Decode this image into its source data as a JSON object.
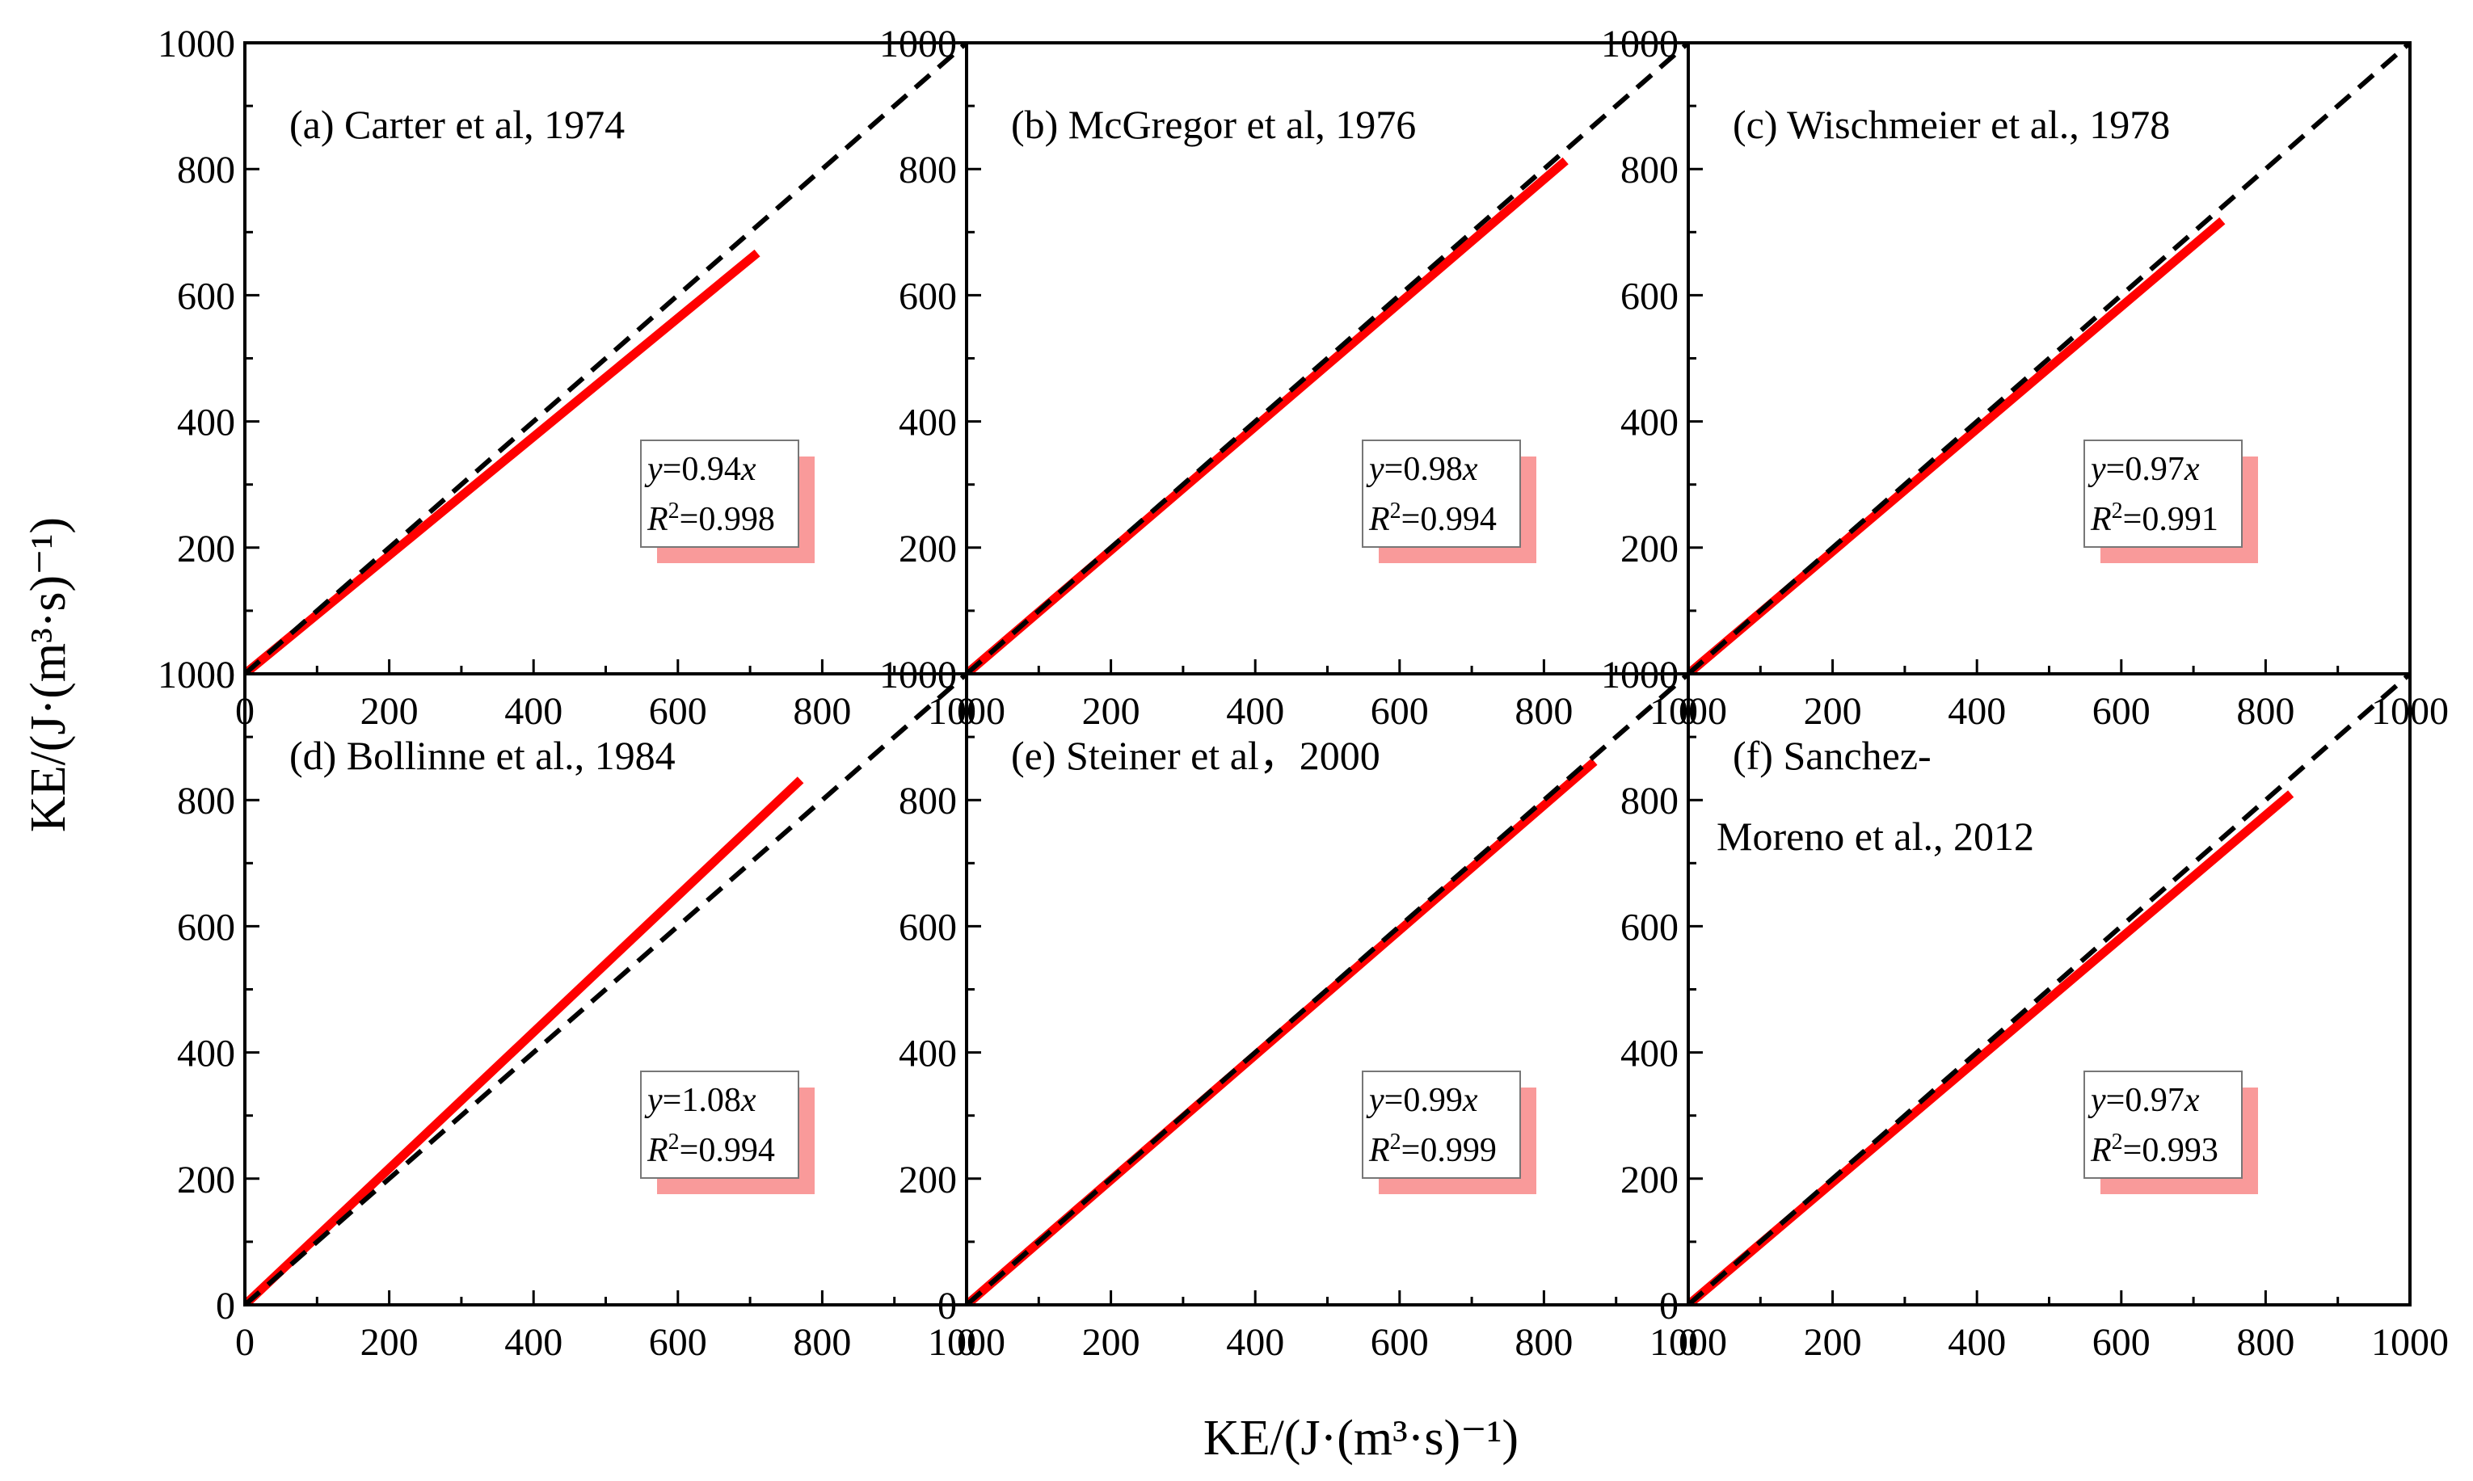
{
  "figure": {
    "xlabel": "KE/(J·(m³·s)⁻¹)",
    "ylabel": "KE/(J·(m³·s)⁻¹)"
  },
  "colors": {
    "fit_line": "#ff0000",
    "reference_line": "#000000",
    "annotation_shadow": "#f99a9a",
    "frame": "#000000"
  },
  "chart_data": [
    {
      "type": "line",
      "title": "(a)  Carter et al, 1974",
      "xlim": [
        0,
        1000
      ],
      "ylim": [
        0,
        1000
      ],
      "x_ticks": [
        0,
        200,
        400,
        600,
        800,
        1000
      ],
      "y_ticks": [
        0,
        200,
        400,
        600,
        800,
        1000
      ],
      "series": [
        {
          "style": "solid-red",
          "x": [
            0,
            710
          ],
          "y": [
            0,
            667
          ]
        },
        {
          "style": "dashed-black",
          "x": [
            0,
            1000
          ],
          "y": [
            0,
            1000
          ]
        }
      ],
      "annotation": {
        "line1": "y=0.94x",
        "line2": "R²=0.998"
      }
    },
    {
      "type": "line",
      "title": "(b)  McGregor et al, 1976",
      "xlim": [
        0,
        1000
      ],
      "ylim": [
        0,
        1000
      ],
      "x_ticks": [
        0,
        200,
        400,
        600,
        800,
        1000
      ],
      "y_ticks": [
        0,
        200,
        400,
        600,
        800,
        1000
      ],
      "series": [
        {
          "style": "solid-red",
          "x": [
            0,
            830
          ],
          "y": [
            0,
            813
          ]
        },
        {
          "style": "dashed-black",
          "x": [
            0,
            1000
          ],
          "y": [
            0,
            1000
          ]
        }
      ],
      "annotation": {
        "line1": "y=0.98x",
        "line2": "R²=0.994"
      }
    },
    {
      "type": "line",
      "title": "(c)  Wischmeier et al., 1978",
      "xlim": [
        0,
        1000
      ],
      "ylim": [
        0,
        1000
      ],
      "x_ticks": [
        0,
        200,
        400,
        600,
        800,
        1000
      ],
      "y_ticks": [
        0,
        200,
        400,
        600,
        800,
        1000
      ],
      "series": [
        {
          "style": "solid-red",
          "x": [
            0,
            740
          ],
          "y": [
            0,
            718
          ]
        },
        {
          "style": "dashed-black",
          "x": [
            0,
            1000
          ],
          "y": [
            0,
            1000
          ]
        }
      ],
      "annotation": {
        "line1": "y=0.97x",
        "line2": "R²=0.991"
      }
    },
    {
      "type": "line",
      "title": "(d)  Bollinne et al., 1984",
      "xlim": [
        0,
        1000
      ],
      "ylim": [
        0,
        1000
      ],
      "x_ticks": [
        0,
        200,
        400,
        600,
        800,
        1000
      ],
      "y_ticks": [
        0,
        200,
        400,
        600,
        800,
        1000
      ],
      "series": [
        {
          "style": "solid-red",
          "x": [
            0,
            770
          ],
          "y": [
            0,
            832
          ]
        },
        {
          "style": "dashed-black",
          "x": [
            0,
            1000
          ],
          "y": [
            0,
            1000
          ]
        }
      ],
      "annotation": {
        "line1": "y=1.08x",
        "line2": "R²=0.994"
      }
    },
    {
      "type": "line",
      "title": "(e)  Steiner et al，2000",
      "xlim": [
        0,
        1000
      ],
      "ylim": [
        0,
        1000
      ],
      "x_ticks": [
        0,
        200,
        400,
        600,
        800,
        1000
      ],
      "y_ticks": [
        0,
        200,
        400,
        600,
        800,
        1000
      ],
      "series": [
        {
          "style": "solid-red",
          "x": [
            0,
            870
          ],
          "y": [
            0,
            861
          ]
        },
        {
          "style": "dashed-black",
          "x": [
            0,
            1000
          ],
          "y": [
            0,
            1000
          ]
        }
      ],
      "annotation": {
        "line1": "y=0.99x",
        "line2": "R²=0.999"
      }
    },
    {
      "type": "line",
      "title": "(f)  Sanchez-",
      "title_line2": "Moreno et al., 2012",
      "xlim": [
        0,
        1000
      ],
      "ylim": [
        0,
        1000
      ],
      "x_ticks": [
        0,
        200,
        400,
        600,
        800,
        1000
      ],
      "y_ticks": [
        0,
        200,
        400,
        600,
        800,
        1000
      ],
      "series": [
        {
          "style": "solid-red",
          "x": [
            0,
            835
          ],
          "y": [
            0,
            810
          ]
        },
        {
          "style": "dashed-black",
          "x": [
            0,
            1000
          ],
          "y": [
            0,
            1000
          ]
        }
      ],
      "annotation": {
        "line1": "y=0.97x",
        "line2": "R²=0.993"
      }
    }
  ]
}
